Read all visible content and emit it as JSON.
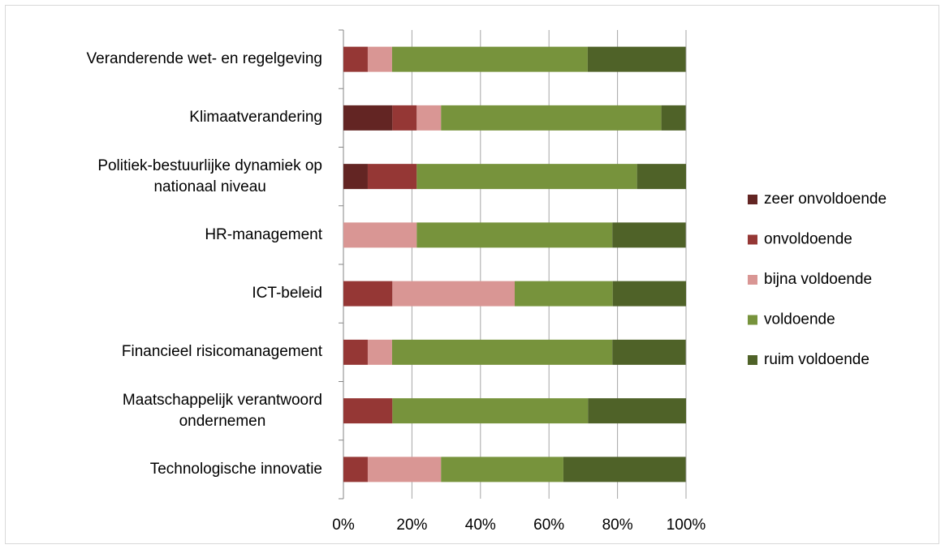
{
  "chart_data": {
    "type": "stacked_bar_horizontal",
    "categories": [
      "Veranderende wet- en regelgeving",
      "Klimaatverandering",
      "Politiek-bestuurlijke dynamiek op\nnationaal niveau",
      "HR-management",
      "ICT-beleid",
      "Financieel risicomanagement",
      "Maatschappelijk verantwoord\nondernemen",
      "Technologische innovatie"
    ],
    "series": [
      {
        "name": "zeer onvoldoende",
        "color": "#632523",
        "values": [
          0,
          14.3,
          7.1,
          0,
          0,
          0,
          0,
          0
        ]
      },
      {
        "name": "onvoldoende",
        "color": "#953735",
        "values": [
          7.1,
          7.1,
          14.3,
          0,
          14.3,
          7.1,
          14.3,
          7.1
        ]
      },
      {
        "name": "bijna voldoende",
        "color": "#d99694",
        "values": [
          7.1,
          7.1,
          0,
          21.4,
          35.7,
          7.1,
          0,
          21.4
        ]
      },
      {
        "name": "voldoende",
        "color": "#77933c",
        "values": [
          57.1,
          64.3,
          64.3,
          57.1,
          28.6,
          64.3,
          57.1,
          35.7
        ]
      },
      {
        "name": "ruim voldoende",
        "color": "#4f6228",
        "values": [
          28.6,
          7.1,
          14.3,
          21.4,
          21.4,
          21.4,
          28.6,
          35.7
        ]
      }
    ],
    "xlim": [
      0,
      100
    ],
    "xticks": [
      {
        "value": 0,
        "label": "0%"
      },
      {
        "value": 20,
        "label": "20%"
      },
      {
        "value": 40,
        "label": "40%"
      },
      {
        "value": 60,
        "label": "60%"
      },
      {
        "value": 80,
        "label": "80%"
      },
      {
        "value": 100,
        "label": "100%"
      }
    ],
    "grid": true,
    "legend": "right"
  }
}
